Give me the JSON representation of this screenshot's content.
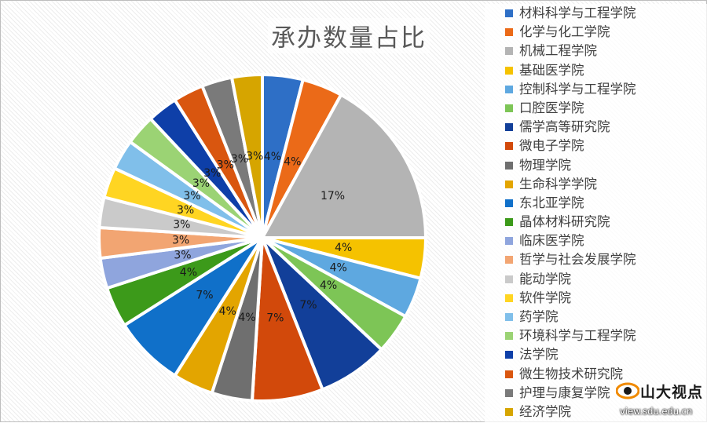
{
  "chart_data": {
    "type": "pie",
    "title": "承办数量占比",
    "slices": [
      {
        "label": "材料科学与工程学院",
        "value": 4,
        "color": "#2E6FC6"
      },
      {
        "label": "化学与化工学院",
        "value": 4,
        "color": "#EB6A18"
      },
      {
        "label": "机械工程学院",
        "value": 17,
        "color": "#B4B4B4"
      },
      {
        "label": "基础医学院",
        "value": 4,
        "color": "#F5C200"
      },
      {
        "label": "控制科学与工程学院",
        "value": 4,
        "color": "#5EA8E0"
      },
      {
        "label": "口腔医学院",
        "value": 4,
        "color": "#7DC556"
      },
      {
        "label": "儒学高等研究院",
        "value": 7,
        "color": "#123F99"
      },
      {
        "label": "微电子学院",
        "value": 7,
        "color": "#D2490B"
      },
      {
        "label": "物理学院",
        "value": 4,
        "color": "#6F6F6F"
      },
      {
        "label": "生命科学学院",
        "value": 4,
        "color": "#E3A500"
      },
      {
        "label": "东北亚学院",
        "value": 7,
        "color": "#1070C9"
      },
      {
        "label": "晶体材料研究院",
        "value": 4,
        "color": "#3C9A1A"
      },
      {
        "label": "临床医学院",
        "value": 3,
        "color": "#8FA5DD"
      },
      {
        "label": "哲学与社会发展学院",
        "value": 3,
        "color": "#F2A572"
      },
      {
        "label": "能动学院",
        "value": 3,
        "color": "#CACACA"
      },
      {
        "label": "软件学院",
        "value": 3,
        "color": "#FFD522"
      },
      {
        "label": "药学院",
        "value": 3,
        "color": "#80BFEA"
      },
      {
        "label": "环境科学与工程学院",
        "value": 3,
        "color": "#9BD374"
      },
      {
        "label": "法学院",
        "value": 3,
        "color": "#0E3FA8"
      },
      {
        "label": "微生物技术研究院",
        "value": 3,
        "color": "#D9560F"
      },
      {
        "label": "护理与康复学院",
        "value": 3,
        "color": "#7A7A7A"
      },
      {
        "label": "经济学院",
        "value": 3,
        "color": "#D6A500"
      }
    ],
    "legend_position": "right",
    "slice_border": "#ffffff"
  },
  "watermark": {
    "name": "山大视点",
    "url": "view.sdu.edu.cn",
    "colors": {
      "logo_primary": "#F08A00",
      "logo_dark": "#1a1a1a"
    }
  }
}
